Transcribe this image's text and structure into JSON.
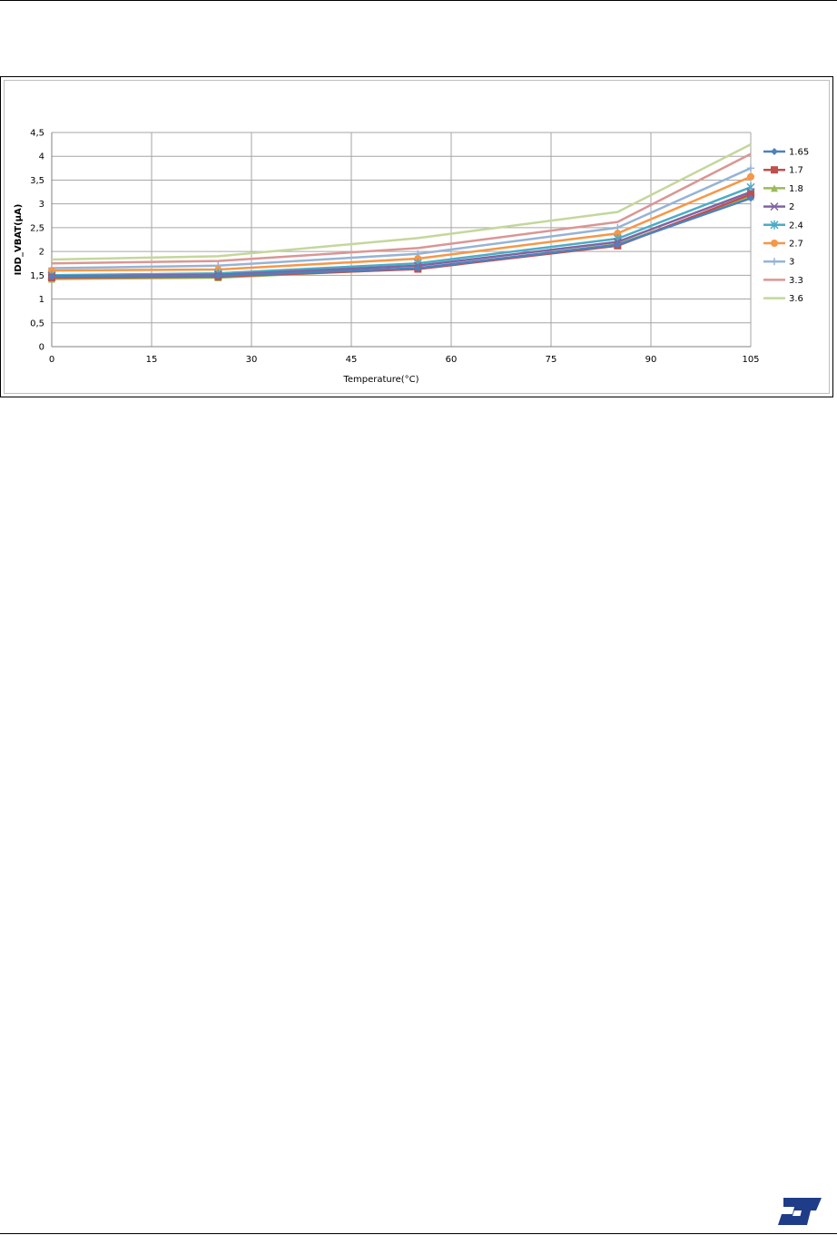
{
  "chart_data": {
    "type": "line",
    "xlabel": "Temperature(°C)",
    "ylabel": "IDD_VBAT(µA)",
    "xlim": [
      0,
      105
    ],
    "ylim": [
      0,
      4.5
    ],
    "x_ticks": [
      "0",
      "15",
      "30",
      "45",
      "60",
      "75",
      "90",
      "105"
    ],
    "x_tick_values": [
      0,
      15,
      30,
      45,
      60,
      75,
      90,
      105
    ],
    "y_ticks": [
      "0",
      "0,5",
      "1",
      "1,5",
      "2",
      "2,5",
      "3",
      "3,5",
      "4",
      "4,5"
    ],
    "y_tick_values": [
      0,
      0.5,
      1,
      1.5,
      2,
      2.5,
      3,
      3.5,
      4,
      4.5
    ],
    "grid": true,
    "legend_position": "right",
    "x": [
      0,
      25,
      55,
      85,
      105
    ],
    "series": [
      {
        "name": "1.65",
        "color": "#4f81bd",
        "marker": "diamond",
        "values": [
          1.47,
          1.49,
          1.65,
          2.14,
          3.12
        ]
      },
      {
        "name": "1.7",
        "color": "#c0504d",
        "marker": "square",
        "values": [
          1.45,
          1.47,
          1.63,
          2.12,
          3.2
        ]
      },
      {
        "name": "1.8",
        "color": "#9bbb59",
        "marker": "triangle",
        "values": [
          1.42,
          1.45,
          1.64,
          2.15,
          3.15
        ]
      },
      {
        "name": "2",
        "color": "#8064a2",
        "marker": "x",
        "values": [
          1.48,
          1.51,
          1.7,
          2.2,
          3.25
        ]
      },
      {
        "name": "2.4",
        "color": "#4bacc6",
        "marker": "star",
        "values": [
          1.5,
          1.54,
          1.75,
          2.27,
          3.35
        ]
      },
      {
        "name": "2.7",
        "color": "#f79646",
        "marker": "circle",
        "values": [
          1.6,
          1.62,
          1.85,
          2.38,
          3.57
        ]
      },
      {
        "name": "3",
        "color": "#95b3d7",
        "marker": "plus",
        "values": [
          1.65,
          1.7,
          1.95,
          2.5,
          3.75
        ]
      },
      {
        "name": "3.3",
        "color": "#da9694",
        "marker": "none",
        "values": [
          1.75,
          1.8,
          2.07,
          2.62,
          4.05
        ]
      },
      {
        "name": "3.6",
        "color": "#c4d79b",
        "marker": "none",
        "values": [
          1.83,
          1.9,
          2.28,
          2.83,
          4.25
        ]
      }
    ]
  },
  "logo": {
    "color": "#1f3c88"
  }
}
